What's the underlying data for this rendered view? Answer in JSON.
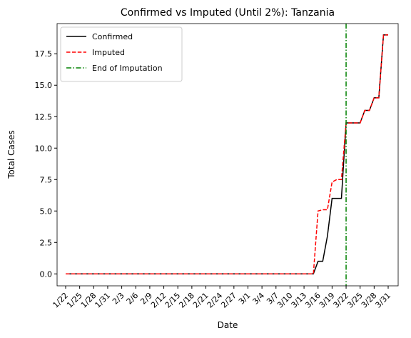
{
  "chart_data": {
    "type": "line",
    "title": "Confirmed vs Imputed (Until 2%): Tanzania",
    "xlabel": "Date",
    "ylabel": "Total Cases",
    "categories": [
      "1/22",
      null,
      null,
      "1/25",
      null,
      null,
      "1/28",
      null,
      null,
      "1/31",
      null,
      null,
      "2/3",
      null,
      null,
      "2/6",
      null,
      null,
      "2/9",
      null,
      null,
      "2/12",
      null,
      null,
      "2/15",
      null,
      null,
      "2/18",
      null,
      null,
      "2/21",
      null,
      null,
      "2/24",
      null,
      null,
      "2/27",
      null,
      null,
      "3/1",
      null,
      null,
      "3/4",
      null,
      null,
      "3/7",
      null,
      null,
      "3/10",
      null,
      null,
      "3/13",
      null,
      null,
      "3/16",
      null,
      null,
      "3/19",
      null,
      null,
      "3/22",
      null,
      null,
      "3/25",
      null,
      null,
      "3/28",
      null,
      null,
      "3/31"
    ],
    "series": [
      {
        "name": "Confirmed",
        "color": "#000000",
        "dash": "solid",
        "values": [
          0,
          0,
          0,
          0,
          0,
          0,
          0,
          0,
          0,
          0,
          0,
          0,
          0,
          0,
          0,
          0,
          0,
          0,
          0,
          0,
          0,
          0,
          0,
          0,
          0,
          0,
          0,
          0,
          0,
          0,
          0,
          0,
          0,
          0,
          0,
          0,
          0,
          0,
          0,
          0,
          0,
          0,
          0,
          0,
          0,
          0,
          0,
          0,
          0,
          0,
          0,
          0,
          0,
          0,
          1,
          1,
          3,
          6,
          6,
          6,
          12,
          12,
          12,
          12,
          13,
          13,
          14,
          14,
          19,
          19
        ]
      },
      {
        "name": "Imputed",
        "color": "#ff0000",
        "dash": "dashed",
        "values": [
          0,
          0,
          0,
          0,
          0,
          0,
          0,
          0,
          0,
          0,
          0,
          0,
          0,
          0,
          0,
          0,
          0,
          0,
          0,
          0,
          0,
          0,
          0,
          0,
          0,
          0,
          0,
          0,
          0,
          0,
          0,
          0,
          0,
          0,
          0,
          0,
          0,
          0,
          0,
          0,
          0,
          0,
          0,
          0,
          0,
          0,
          0,
          0,
          0,
          0,
          0,
          0,
          0,
          0,
          5,
          5.1,
          5.1,
          7.3,
          7.5,
          7.5,
          12,
          12,
          12,
          12,
          13,
          13,
          14,
          14,
          19,
          19
        ]
      }
    ],
    "vlines": [
      {
        "name": "End of Imputation",
        "color": "#008000",
        "dash": "dashdot",
        "x": "3/22"
      }
    ],
    "ylim": [
      -0.95,
      19.9
    ],
    "yticks": [
      {
        "value": 0,
        "label": "0.0"
      },
      {
        "value": 2.5,
        "label": "2.5"
      },
      {
        "value": 5,
        "label": "5.0"
      },
      {
        "value": 7.5,
        "label": "7.5"
      },
      {
        "value": 10,
        "label": "10.0"
      },
      {
        "value": 12.5,
        "label": "12.5"
      },
      {
        "value": 15,
        "label": "15.0"
      },
      {
        "value": 17.5,
        "label": "17.5"
      }
    ],
    "legend": "upper left",
    "grid": false
  }
}
